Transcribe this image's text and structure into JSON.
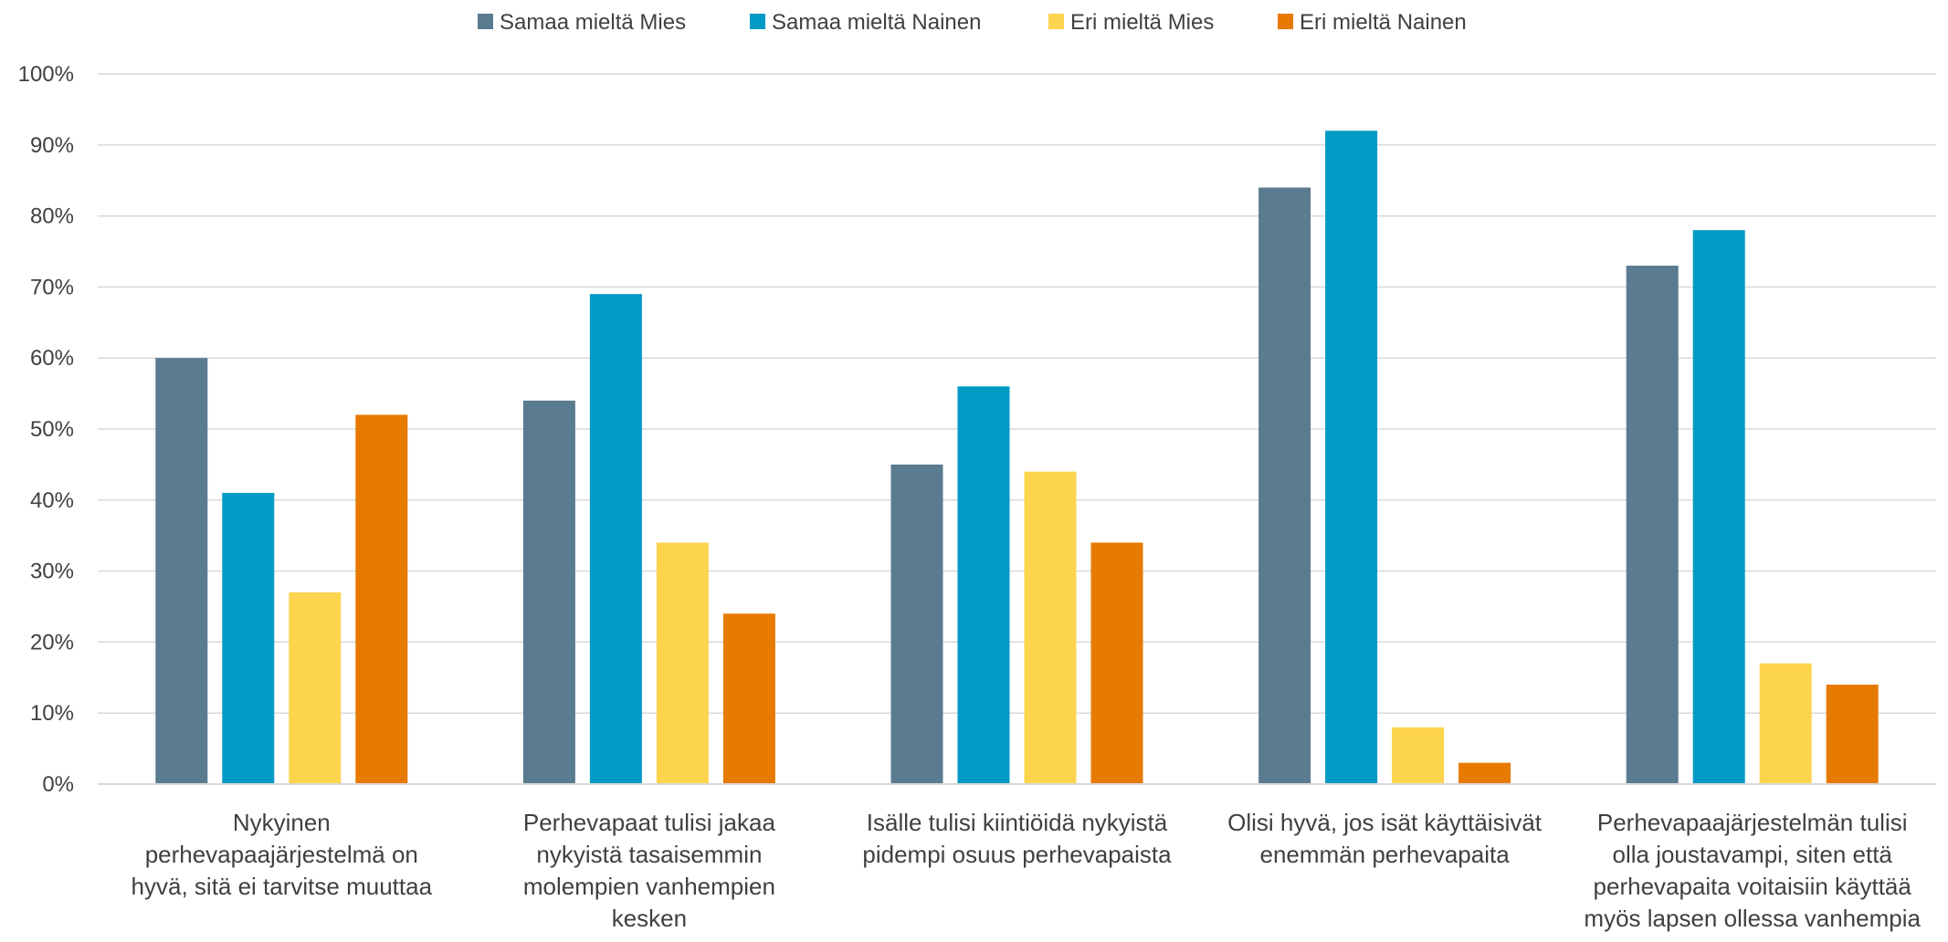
{
  "chart_data": {
    "type": "bar",
    "title": "",
    "xlabel": "",
    "ylabel": "",
    "ylim": [
      0,
      100
    ],
    "y_ticks": [
      {
        "value": 0,
        "label": "0%"
      },
      {
        "value": 10,
        "label": "10%"
      },
      {
        "value": 20,
        "label": "20%"
      },
      {
        "value": 30,
        "label": "30%"
      },
      {
        "value": 40,
        "label": "40%"
      },
      {
        "value": 50,
        "label": "50%"
      },
      {
        "value": 60,
        "label": "60%"
      },
      {
        "value": 70,
        "label": "70%"
      },
      {
        "value": 80,
        "label": "80%"
      },
      {
        "value": 90,
        "label": "90%"
      },
      {
        "value": 100,
        "label": "100%"
      }
    ],
    "grid": true,
    "legend_position": "top",
    "categories": [
      [
        "Nykyinen",
        "perhevapaajärjestelmä on",
        "hyvä, sitä ei tarvitse muuttaa"
      ],
      [
        "Perhevapaat tulisi jakaa",
        "nykyistä tasaisemmin",
        "molempien vanhempien",
        "kesken"
      ],
      [
        "Isälle tulisi kiintiöidä nykyistä",
        "pidempi osuus perhevapaista"
      ],
      [
        "Olisi hyvä, jos isät käyttäisivät",
        "enemmän perhevapaita"
      ],
      [
        "Perhevapaajärjestelmän tulisi",
        "olla joustavampi, siten että",
        "perhevapaita voitaisiin käyttää",
        "myös lapsen ollessa vanhempia"
      ]
    ],
    "series": [
      {
        "name": "Samaa mieltä Mies",
        "color": "#5b7b90",
        "values": [
          60,
          54,
          45,
          84,
          73
        ]
      },
      {
        "name": "Samaa mieltä Nainen",
        "color": "#009ac5",
        "values": [
          41,
          69,
          56,
          92,
          78
        ]
      },
      {
        "name": "Eri mieltä Mies",
        "color": "#fdd44e",
        "values": [
          27,
          34,
          44,
          8,
          17
        ]
      },
      {
        "name": "Eri mieltä Nainen",
        "color": "#e77a00",
        "values": [
          52,
          24,
          34,
          3,
          14
        ]
      }
    ],
    "colors": {
      "grid": "#d9d9d9",
      "text": "#404040"
    }
  }
}
